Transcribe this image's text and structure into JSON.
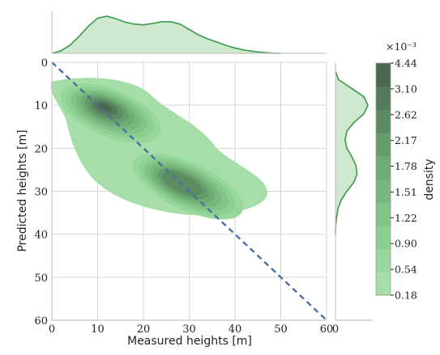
{
  "chart_data": {
    "type": "joint-kde",
    "xlabel": "Measured heights [m]",
    "ylabel": "Predicted heights [m]",
    "xlim": [
      0,
      60
    ],
    "ylim": [
      60,
      0
    ],
    "x_ticks": [
      "0",
      "10",
      "20",
      "30",
      "40",
      "50",
      "60"
    ],
    "y_ticks": [
      "0",
      "10",
      "20",
      "30",
      "40",
      "50",
      "60"
    ],
    "marginal_x_ticks": [
      "0",
      "60"
    ],
    "grid": true,
    "reference_line": {
      "x": [
        0,
        60
      ],
      "y": [
        0,
        60
      ],
      "style": "dashed",
      "color": "#4a6fa5"
    },
    "joint_density": {
      "modes": [
        {
          "x": 11.5,
          "y": 10.5,
          "peak": true
        },
        {
          "x": 28.0,
          "y": 28.0,
          "peak": false
        }
      ],
      "extent_x": [
        0,
        48
      ],
      "extent_y": [
        4,
        36
      ]
    },
    "marginal_x": {
      "x": [
        0,
        2,
        4,
        6,
        8,
        10,
        12,
        14,
        16,
        18,
        20,
        22,
        24,
        26,
        28,
        30,
        32,
        34,
        36,
        38,
        40,
        42,
        44,
        46,
        48,
        50
      ],
      "density": [
        0.0,
        0.008,
        0.025,
        0.052,
        0.082,
        0.106,
        0.112,
        0.104,
        0.094,
        0.088,
        0.086,
        0.09,
        0.095,
        0.095,
        0.088,
        0.072,
        0.056,
        0.044,
        0.034,
        0.024,
        0.016,
        0.01,
        0.006,
        0.003,
        0.001,
        0.0
      ]
    },
    "marginal_y": {
      "y": [
        2,
        4,
        6,
        8,
        10,
        12,
        14,
        16,
        18,
        20,
        22,
        24,
        26,
        28,
        30,
        32,
        34,
        36,
        38,
        40
      ],
      "density": [
        0.0,
        0.01,
        0.055,
        0.1,
        0.114,
        0.1,
        0.065,
        0.04,
        0.034,
        0.04,
        0.058,
        0.072,
        0.076,
        0.064,
        0.04,
        0.02,
        0.009,
        0.004,
        0.001,
        0.0
      ]
    },
    "colorbar": {
      "label": "density",
      "exponent": "×10⁻³",
      "ticks": [
        "0.18",
        "0.54",
        "0.90",
        "1.22",
        "1.51",
        "1.78",
        "2.17",
        "2.62",
        "3.10",
        "4.44"
      ],
      "colors": [
        "#a5dea8",
        "#98d79c",
        "#8ccf91",
        "#82c487",
        "#78b87e",
        "#6fab74",
        "#659c6b",
        "#5c8c62",
        "#537b59",
        "#4a6a50"
      ]
    },
    "colors": {
      "kde_line": "#3a9a48",
      "kde_fill": "#cfe8d0",
      "grid": "#d6d6d6",
      "spine": "#c8c8c8"
    }
  }
}
